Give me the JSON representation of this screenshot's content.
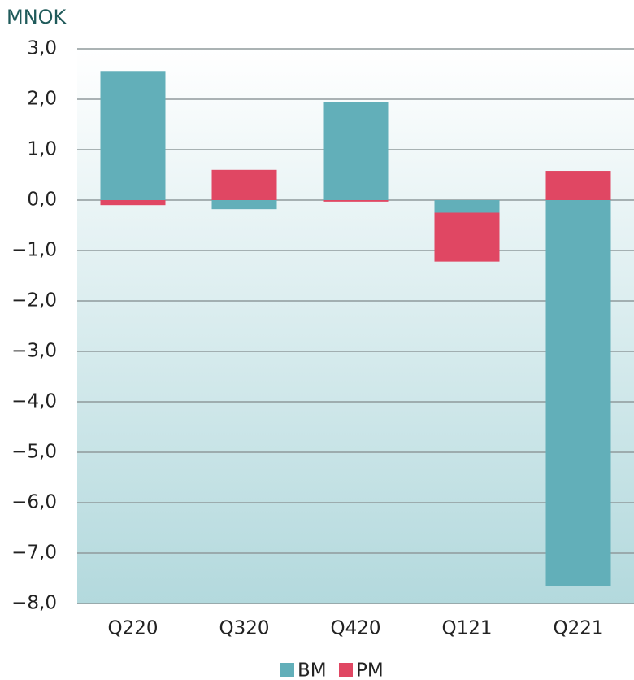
{
  "chart_data": {
    "type": "bar",
    "stacked": true,
    "y_label": "MNOK",
    "categories": [
      "Q220",
      "Q320",
      "Q420",
      "Q121",
      "Q221"
    ],
    "series": [
      {
        "name": "BM",
        "color": "#62afb9",
        "values": [
          2.56,
          -0.18,
          1.95,
          -0.25,
          -7.65
        ]
      },
      {
        "name": "PM",
        "color": "#e04763",
        "values": [
          -0.1,
          0.6,
          -0.03,
          -0.97,
          0.58
        ]
      }
    ],
    "ylim": [
      -8,
      3
    ],
    "yticks": [
      {
        "value": 3,
        "label": "3,0"
      },
      {
        "value": 2,
        "label": "2,0"
      },
      {
        "value": 1,
        "label": "1,0"
      },
      {
        "value": 0,
        "label": "0,0"
      },
      {
        "value": -1,
        "label": "−1,0"
      },
      {
        "value": -2,
        "label": "−2,0"
      },
      {
        "value": -3,
        "label": "−3,0"
      },
      {
        "value": -4,
        "label": "−4,0"
      },
      {
        "value": -5,
        "label": "−5,0"
      },
      {
        "value": -6,
        "label": "−6,0"
      },
      {
        "value": -7,
        "label": "−7,0"
      },
      {
        "value": -8,
        "label": "−8,0"
      }
    ],
    "grid": true,
    "legend": "bottom"
  }
}
